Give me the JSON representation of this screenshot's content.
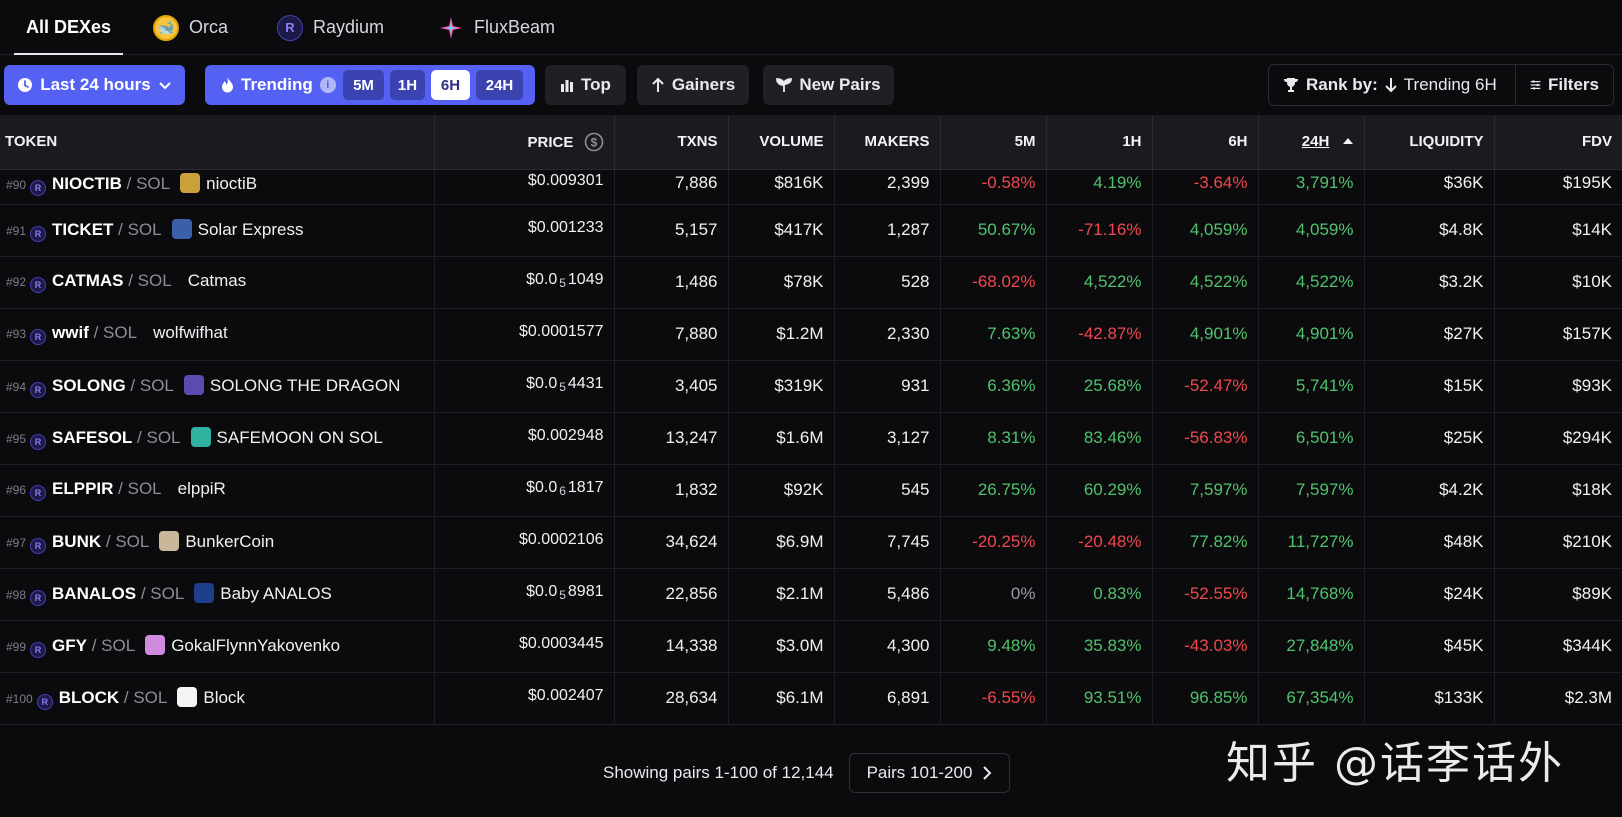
{
  "dex_tabs": [
    {
      "label": "All DEXes",
      "icon": "",
      "active": true
    },
    {
      "label": "Orca",
      "icon": "orca-logo-icon"
    },
    {
      "label": "Raydium",
      "icon": "raydium-logo-icon"
    },
    {
      "label": "FluxBeam",
      "icon": "fluxbeam-logo-icon"
    }
  ],
  "filters": {
    "time_range": "Last 24 hours",
    "trending": "Trending",
    "timeframes": [
      "5M",
      "1H",
      "6H",
      "24H"
    ],
    "active_timeframe": "6H",
    "top": "Top",
    "gainers": "Gainers",
    "new_pairs": "New Pairs",
    "rank_by_label": "Rank by:",
    "rank_by_value": "Trending 6H",
    "filters": "Filters"
  },
  "table": {
    "columns": [
      "TOKEN",
      "PRICE",
      "TXNS",
      "VOLUME",
      "MAKERS",
      "5M",
      "1H",
      "6H",
      "24H",
      "LIQUIDITY",
      "FDV"
    ],
    "sorted_column": "24H",
    "rows": [
      {
        "rank": "#90",
        "symbol": "NIOCTIB",
        "quote": "SOL",
        "name": "nioctiB",
        "price_prefix": "$0.009301",
        "price_sub": "",
        "price_rest": "",
        "txns": "7,886",
        "volume": "$816K",
        "makers": "2,399",
        "m5": "-0.58%",
        "h1": "4.19%",
        "h6": "-3.64%",
        "h24": "3,791%",
        "liquidity": "$36K",
        "fdv": "$195K"
      },
      {
        "rank": "#91",
        "symbol": "TICKET",
        "quote": "SOL",
        "name": "Solar Express",
        "price_prefix": "$0.001233",
        "price_sub": "",
        "price_rest": "",
        "txns": "5,157",
        "volume": "$417K",
        "makers": "1,287",
        "m5": "50.67%",
        "h1": "-71.16%",
        "h6": "4,059%",
        "h24": "4,059%",
        "liquidity": "$4.8K",
        "fdv": "$14K"
      },
      {
        "rank": "#92",
        "symbol": "CATMAS",
        "quote": "SOL",
        "name": "Catmas",
        "price_prefix": "$0.0",
        "price_sub": "5",
        "price_rest": "1049",
        "txns": "1,486",
        "volume": "$78K",
        "makers": "528",
        "m5": "-68.02%",
        "h1": "4,522%",
        "h6": "4,522%",
        "h24": "4,522%",
        "liquidity": "$3.2K",
        "fdv": "$10K"
      },
      {
        "rank": "#93",
        "symbol": "wwif",
        "quote": "SOL",
        "name": "wolfwifhat",
        "price_prefix": "$0.0001577",
        "price_sub": "",
        "price_rest": "",
        "txns": "7,880",
        "volume": "$1.2M",
        "makers": "2,330",
        "m5": "7.63%",
        "h1": "-42.87%",
        "h6": "4,901%",
        "h24": "4,901%",
        "liquidity": "$27K",
        "fdv": "$157K"
      },
      {
        "rank": "#94",
        "symbol": "SOLONG",
        "quote": "SOL",
        "name": "SOLONG THE DRAGON",
        "price_prefix": "$0.0",
        "price_sub": "5",
        "price_rest": "4431",
        "txns": "3,405",
        "volume": "$319K",
        "makers": "931",
        "m5": "6.36%",
        "h1": "25.68%",
        "h6": "-52.47%",
        "h24": "5,741%",
        "liquidity": "$15K",
        "fdv": "$93K"
      },
      {
        "rank": "#95",
        "symbol": "SAFESOL",
        "quote": "SOL",
        "name": "SAFEMOON ON SOL",
        "price_prefix": "$0.002948",
        "price_sub": "",
        "price_rest": "",
        "txns": "13,247",
        "volume": "$1.6M",
        "makers": "3,127",
        "m5": "8.31%",
        "h1": "83.46%",
        "h6": "-56.83%",
        "h24": "6,501%",
        "liquidity": "$25K",
        "fdv": "$294K"
      },
      {
        "rank": "#96",
        "symbol": "ELPPIR",
        "quote": "SOL",
        "name": "elppiR",
        "price_prefix": "$0.0",
        "price_sub": "6",
        "price_rest": "1817",
        "txns": "1,832",
        "volume": "$92K",
        "makers": "545",
        "m5": "26.75%",
        "h1": "60.29%",
        "h6": "7,597%",
        "h24": "7,597%",
        "liquidity": "$4.2K",
        "fdv": "$18K"
      },
      {
        "rank": "#97",
        "symbol": "BUNK",
        "quote": "SOL",
        "name": "BunkerCoin",
        "price_prefix": "$0.0002106",
        "price_sub": "",
        "price_rest": "",
        "txns": "34,624",
        "volume": "$6.9M",
        "makers": "7,745",
        "m5": "-20.25%",
        "h1": "-20.48%",
        "h6": "77.82%",
        "h24": "11,727%",
        "liquidity": "$48K",
        "fdv": "$210K"
      },
      {
        "rank": "#98",
        "symbol": "BANALOS",
        "quote": "SOL",
        "name": "Baby ANALOS",
        "price_prefix": "$0.0",
        "price_sub": "5",
        "price_rest": "8981",
        "txns": "22,856",
        "volume": "$2.1M",
        "makers": "5,486",
        "m5": "0%",
        "h1": "0.83%",
        "h6": "-52.55%",
        "h24": "14,768%",
        "liquidity": "$24K",
        "fdv": "$89K"
      },
      {
        "rank": "#99",
        "symbol": "GFY",
        "quote": "SOL",
        "name": "GokalFlynnYakovenko",
        "price_prefix": "$0.0003445",
        "price_sub": "",
        "price_rest": "",
        "txns": "14,338",
        "volume": "$3.0M",
        "makers": "4,300",
        "m5": "9.48%",
        "h1": "35.83%",
        "h6": "-43.03%",
        "h24": "27,848%",
        "liquidity": "$45K",
        "fdv": "$344K"
      },
      {
        "rank": "#100",
        "symbol": "BLOCK",
        "quote": "SOL",
        "name": "Block",
        "price_prefix": "$0.002407",
        "price_sub": "",
        "price_rest": "",
        "txns": "28,634",
        "volume": "$6.1M",
        "makers": "6,891",
        "m5": "-6.55%",
        "h1": "93.51%",
        "h6": "96.85%",
        "h24": "67,354%",
        "liquidity": "$133K",
        "fdv": "$2.3M"
      }
    ]
  },
  "footer": {
    "showing": "Showing pairs 1-100 of 12,144",
    "next_page": "Pairs 101-200",
    "watermark": "知乎 @话李话外"
  },
  "colors": {
    "accent": "#5561f2",
    "positive": "#4fc26b",
    "negative": "#f0474c",
    "background": "#0b0b0e"
  },
  "avatars": {
    "NIOCTIB": "#c8a13a",
    "TICKET": "#3b5fa8",
    "CATMAS": "",
    "wwif": "",
    "SOLONG": "#5a4bb0",
    "SAFESOL": "#2fb3a0",
    "ELPPIR": "",
    "BUNK": "#c9b79a",
    "BANALOS": "#1e3d8a",
    "GFY": "#d08adf",
    "BLOCK": "#f4f4f4"
  }
}
